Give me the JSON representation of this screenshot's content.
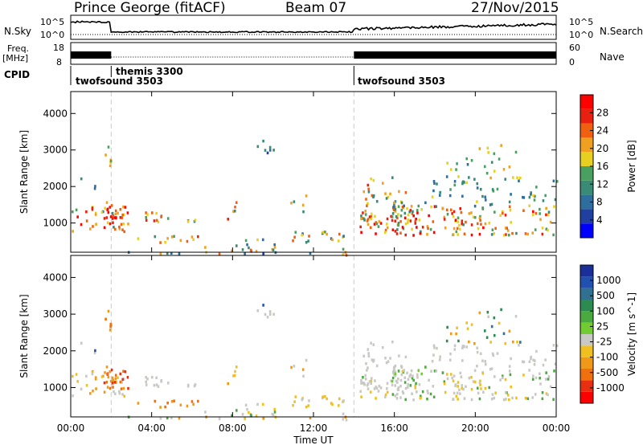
{
  "header": {
    "station": "Prince George (fitACF)",
    "beam": "Beam 07",
    "date": "27/Nov/2015"
  },
  "side_labels": {
    "nsky": "N.Sky",
    "nsky_ticks": [
      "10^5",
      "10^0"
    ],
    "nsearch": "N.Search",
    "freq_line1": "Freq.",
    "freq_line2": "[MHz]",
    "freq_ticks": [
      "18",
      "8"
    ],
    "nave": "Nave",
    "nave_ticks": [
      "60",
      "0"
    ],
    "cpid": "CPID"
  },
  "cpid_segments": [
    {
      "label": "twofsound 3503",
      "start_hour": 0.0
    },
    {
      "label": "themis 3300",
      "start_hour": 2.0
    },
    {
      "label": "twofsound 3503",
      "start_hour": 14.0
    }
  ],
  "colors": {
    "power": [
      "#0000ff",
      "#2040a0",
      "#2e6e9e",
      "#3a8a78",
      "#4aa060",
      "#e8d020",
      "#f0a020",
      "#f06010",
      "#e82010",
      "#ff0000"
    ],
    "velocity_pos": [
      "#1a2f9a",
      "#2050b0",
      "#307090",
      "#2d8a50",
      "#4aaa40",
      "#70cc30"
    ],
    "velocity_gray": "#c8c8c4",
    "velocity_neg": [
      "#f0c020",
      "#f09818",
      "#f07010",
      "#e83010",
      "#ff0000"
    ]
  },
  "chart_data": [
    {
      "type": "heatmap",
      "panel": "power",
      "ylabel": "Slant Range [km]",
      "yticks": [
        "1000",
        "2000",
        "3000",
        "4000"
      ],
      "ylim": [
        200,
        4600
      ],
      "xlim": [
        0,
        24
      ],
      "colorbar_label": "Power [dB]",
      "colorbar_ticks": [
        "4",
        "8",
        "12",
        "16",
        "20",
        "24",
        "28"
      ],
      "colorbar_range": [
        0,
        30
      ]
    },
    {
      "type": "heatmap",
      "panel": "velocity",
      "ylabel": "Slant Range [km]",
      "yticks": [
        "1000",
        "2000",
        "3000",
        "4000"
      ],
      "ylim": [
        200,
        4600
      ],
      "xlim": [
        0,
        24
      ],
      "xlabel": "Time UT",
      "xticks": [
        "00:00",
        "04:00",
        "08:00",
        "12:00",
        "16:00",
        "20:00",
        "00:00"
      ],
      "colorbar_label": "Velocity [m s^-1]",
      "colorbar_ticks": [
        "1000",
        "500",
        "100",
        "25",
        "-25",
        "-100",
        "-500",
        "-1000"
      ]
    },
    {
      "type": "line",
      "panel": "nsky",
      "xlim": [
        0,
        24
      ]
    }
  ]
}
